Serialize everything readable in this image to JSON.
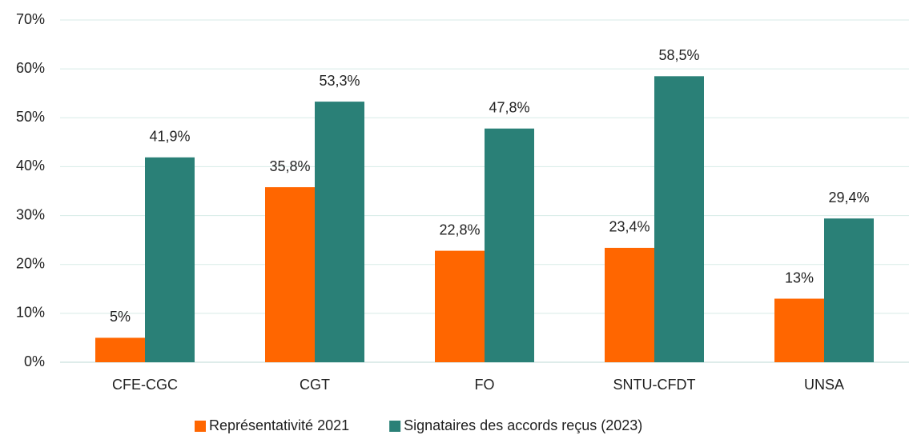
{
  "chart_data": {
    "type": "bar",
    "categories": [
      "CFE-CGC",
      "CGT",
      "FO",
      "SNTU-CFDT",
      "UNSA"
    ],
    "series": [
      {
        "name": "Représentativité 2021",
        "color": "#ff6600",
        "values": [
          5,
          35.8,
          22.8,
          23.4,
          13
        ],
        "value_labels": [
          "5%",
          "35,8%",
          "22,8%",
          "23,4%",
          "13%"
        ]
      },
      {
        "name": "Signataires des accords reçus (2023)",
        "color": "#2a8077",
        "values": [
          41.9,
          53.3,
          47.8,
          58.5,
          29.4
        ],
        "value_labels": [
          "41,9%",
          "53,3%",
          "47,8%",
          "58,5%",
          "29,4%"
        ]
      }
    ],
    "ylim": [
      0,
      70
    ],
    "yticks": [
      {
        "value": 0,
        "label": "0%"
      },
      {
        "value": 10,
        "label": "10%"
      },
      {
        "value": 20,
        "label": "20%"
      },
      {
        "value": 30,
        "label": "30%"
      },
      {
        "value": 40,
        "label": "40%"
      },
      {
        "value": 50,
        "label": "50%"
      },
      {
        "value": 60,
        "label": "60%"
      },
      {
        "value": 70,
        "label": "70%"
      }
    ],
    "grid": true,
    "legend": "bottom"
  }
}
